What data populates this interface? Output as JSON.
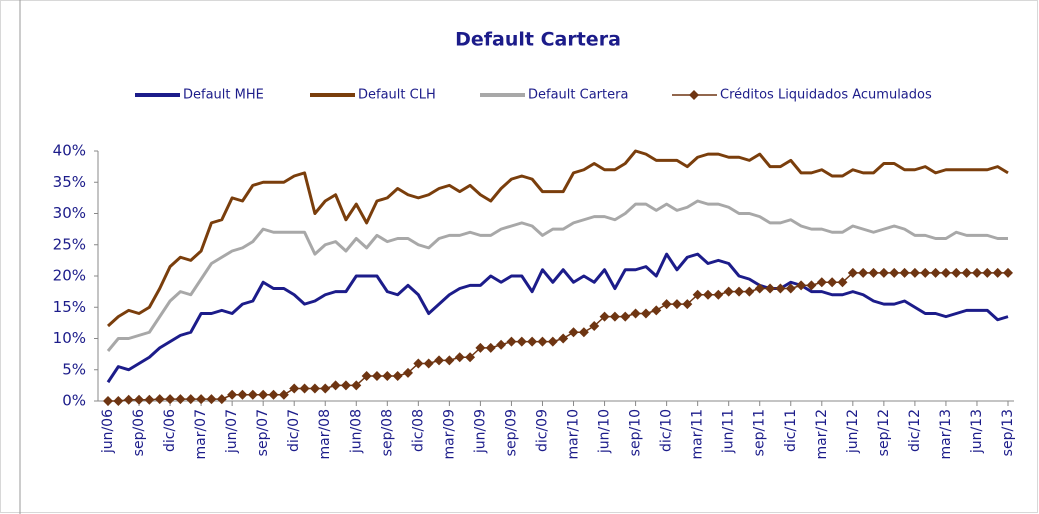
{
  "chart_data": {
    "type": "line",
    "title": "Default Cartera",
    "categories": [
      "jun/06",
      null,
      null,
      "sep/06",
      null,
      null,
      "dic/06",
      null,
      null,
      "mar/07",
      null,
      null,
      "jun/07",
      null,
      null,
      "sep/07",
      null,
      null,
      "dic/07",
      null,
      null,
      "mar/08",
      null,
      null,
      "jun/08",
      null,
      null,
      "sep/08",
      null,
      null,
      "dic/08",
      null,
      null,
      "mar/09",
      null,
      null,
      "jun/09",
      null,
      null,
      "sep/09",
      null,
      null,
      "dic/09",
      null,
      null,
      "mar/10",
      null,
      null,
      "jun/10",
      null,
      null,
      "sep/10",
      null,
      null,
      "dic/10",
      null,
      null,
      "mar/11",
      null,
      null,
      "jun/11",
      null,
      null,
      "sep/11",
      null,
      null,
      "dic/11",
      null,
      null,
      "mar/12",
      null,
      null,
      "jun/12",
      null,
      null,
      "sep/12",
      null,
      null,
      "dic/12",
      null,
      null,
      "mar/13",
      null,
      null,
      "jun/13",
      null,
      null,
      "sep/13"
    ],
    "series": [
      {
        "name": "Default MHE",
        "color": "#1c1c8a",
        "values": [
          3,
          5.5,
          5,
          6,
          7,
          8.5,
          9.5,
          10.5,
          11,
          14,
          14,
          14.5,
          14,
          15.5,
          16,
          19,
          18,
          18,
          17,
          15.5,
          16,
          17,
          17.5,
          17.5,
          20,
          20,
          20,
          17.5,
          17,
          18.5,
          17,
          14,
          15.5,
          17,
          18,
          18.5,
          18.5,
          20,
          19,
          20,
          20,
          17.5,
          21,
          19,
          21,
          19,
          20,
          19,
          21,
          18,
          21,
          21,
          21.5,
          20,
          23.5,
          21,
          23,
          23.5,
          22,
          22.5,
          22,
          20,
          19.5,
          18.5,
          18,
          18,
          19,
          18.5,
          17.5,
          17.5,
          17,
          17,
          17.5,
          17,
          16,
          15.5,
          15.5,
          16,
          15,
          14,
          14,
          13.5,
          14,
          14.5,
          14.5,
          14.5,
          13,
          13.5
        ]
      },
      {
        "name": "Default CLH",
        "color": "#7a3e0c",
        "values": [
          12,
          13.5,
          14.5,
          14,
          15,
          18,
          21.5,
          23,
          22.5,
          24,
          28.5,
          29,
          32.5,
          32,
          34.5,
          35,
          35,
          35,
          36,
          36.5,
          30,
          32,
          33,
          29,
          31.5,
          28.5,
          32,
          32.5,
          34,
          33,
          32.5,
          33,
          34,
          34.5,
          33.5,
          34.5,
          33,
          32,
          34,
          35.5,
          36,
          35.5,
          33.5,
          33.5,
          33.5,
          36.5,
          37,
          38,
          37,
          37,
          38,
          40,
          39.5,
          38.5,
          38.5,
          38.5,
          37.5,
          39,
          39.5,
          39.5,
          39,
          39,
          38.5,
          39.5,
          37.5,
          37.5,
          38.5,
          36.5,
          36.5,
          37,
          36,
          36,
          37,
          36.5,
          36.5,
          38,
          38,
          37,
          37,
          37.5,
          36.5,
          37,
          37,
          37,
          37,
          37,
          37.5,
          36.5
        ]
      },
      {
        "name": "Default Cartera",
        "color": "#a8a8a8",
        "values": [
          8,
          10,
          10,
          10.5,
          11,
          13.5,
          16,
          17.5,
          17,
          19.5,
          22,
          23,
          24,
          24.5,
          25.5,
          27.5,
          27,
          27,
          27,
          27,
          23.5,
          25,
          25.5,
          24,
          26,
          24.5,
          26.5,
          25.5,
          26,
          26,
          25,
          24.5,
          26,
          26.5,
          26.5,
          27,
          26.5,
          26.5,
          27.5,
          28,
          28.5,
          28,
          26.5,
          27.5,
          27.5,
          28.5,
          29,
          29.5,
          29.5,
          29,
          30,
          31.5,
          31.5,
          30.5,
          31.5,
          30.5,
          31,
          32,
          31.5,
          31.5,
          31,
          30,
          30,
          29.5,
          28.5,
          28.5,
          29,
          28,
          27.5,
          27.5,
          27,
          27,
          28,
          27.5,
          27,
          27.5,
          28,
          27.5,
          26.5,
          26.5,
          26,
          26,
          27,
          26.5,
          26.5,
          26.5,
          26,
          26
        ]
      },
      {
        "name": "Créditos Liquidados Acumulados",
        "color": "#6e3512",
        "values": [
          0,
          0,
          0.2,
          0.2,
          0.2,
          0.3,
          0.3,
          0.3,
          0.3,
          0.3,
          0.3,
          0.3,
          1,
          1,
          1,
          1,
          1,
          1,
          2,
          2,
          2,
          2,
          2.5,
          2.5,
          2.5,
          4,
          4,
          4,
          4,
          4.5,
          6,
          6,
          6.5,
          6.5,
          7,
          7,
          8.5,
          8.5,
          9,
          9.5,
          9.5,
          9.5,
          9.5,
          9.5,
          10,
          11,
          11,
          12,
          13.5,
          13.5,
          13.5,
          14,
          14,
          14.5,
          15.5,
          15.5,
          15.5,
          17,
          17,
          17,
          17.5,
          17.5,
          17.5,
          18,
          18,
          18,
          18,
          18.5,
          18.5,
          19,
          19,
          19,
          20.5,
          20.5,
          20.5,
          20.5,
          20.5,
          20.5,
          20.5,
          20.5,
          20.5,
          20.5,
          20.5,
          20.5,
          20.5,
          20.5,
          20.5,
          20.5
        ]
      }
    ],
    "ylim": [
      0,
      40
    ],
    "yticks": [
      {
        "value": 0,
        "label": "0%"
      },
      {
        "value": 5,
        "label": "5%"
      },
      {
        "value": 10,
        "label": "10%"
      },
      {
        "value": 15,
        "label": "15%"
      },
      {
        "value": 20,
        "label": "20%"
      },
      {
        "value": 25,
        "label": "25%"
      },
      {
        "value": 30,
        "label": "30%"
      },
      {
        "value": 35,
        "label": "35%"
      },
      {
        "value": 40,
        "label": "40%"
      }
    ],
    "grid": false,
    "legend": "top"
  }
}
